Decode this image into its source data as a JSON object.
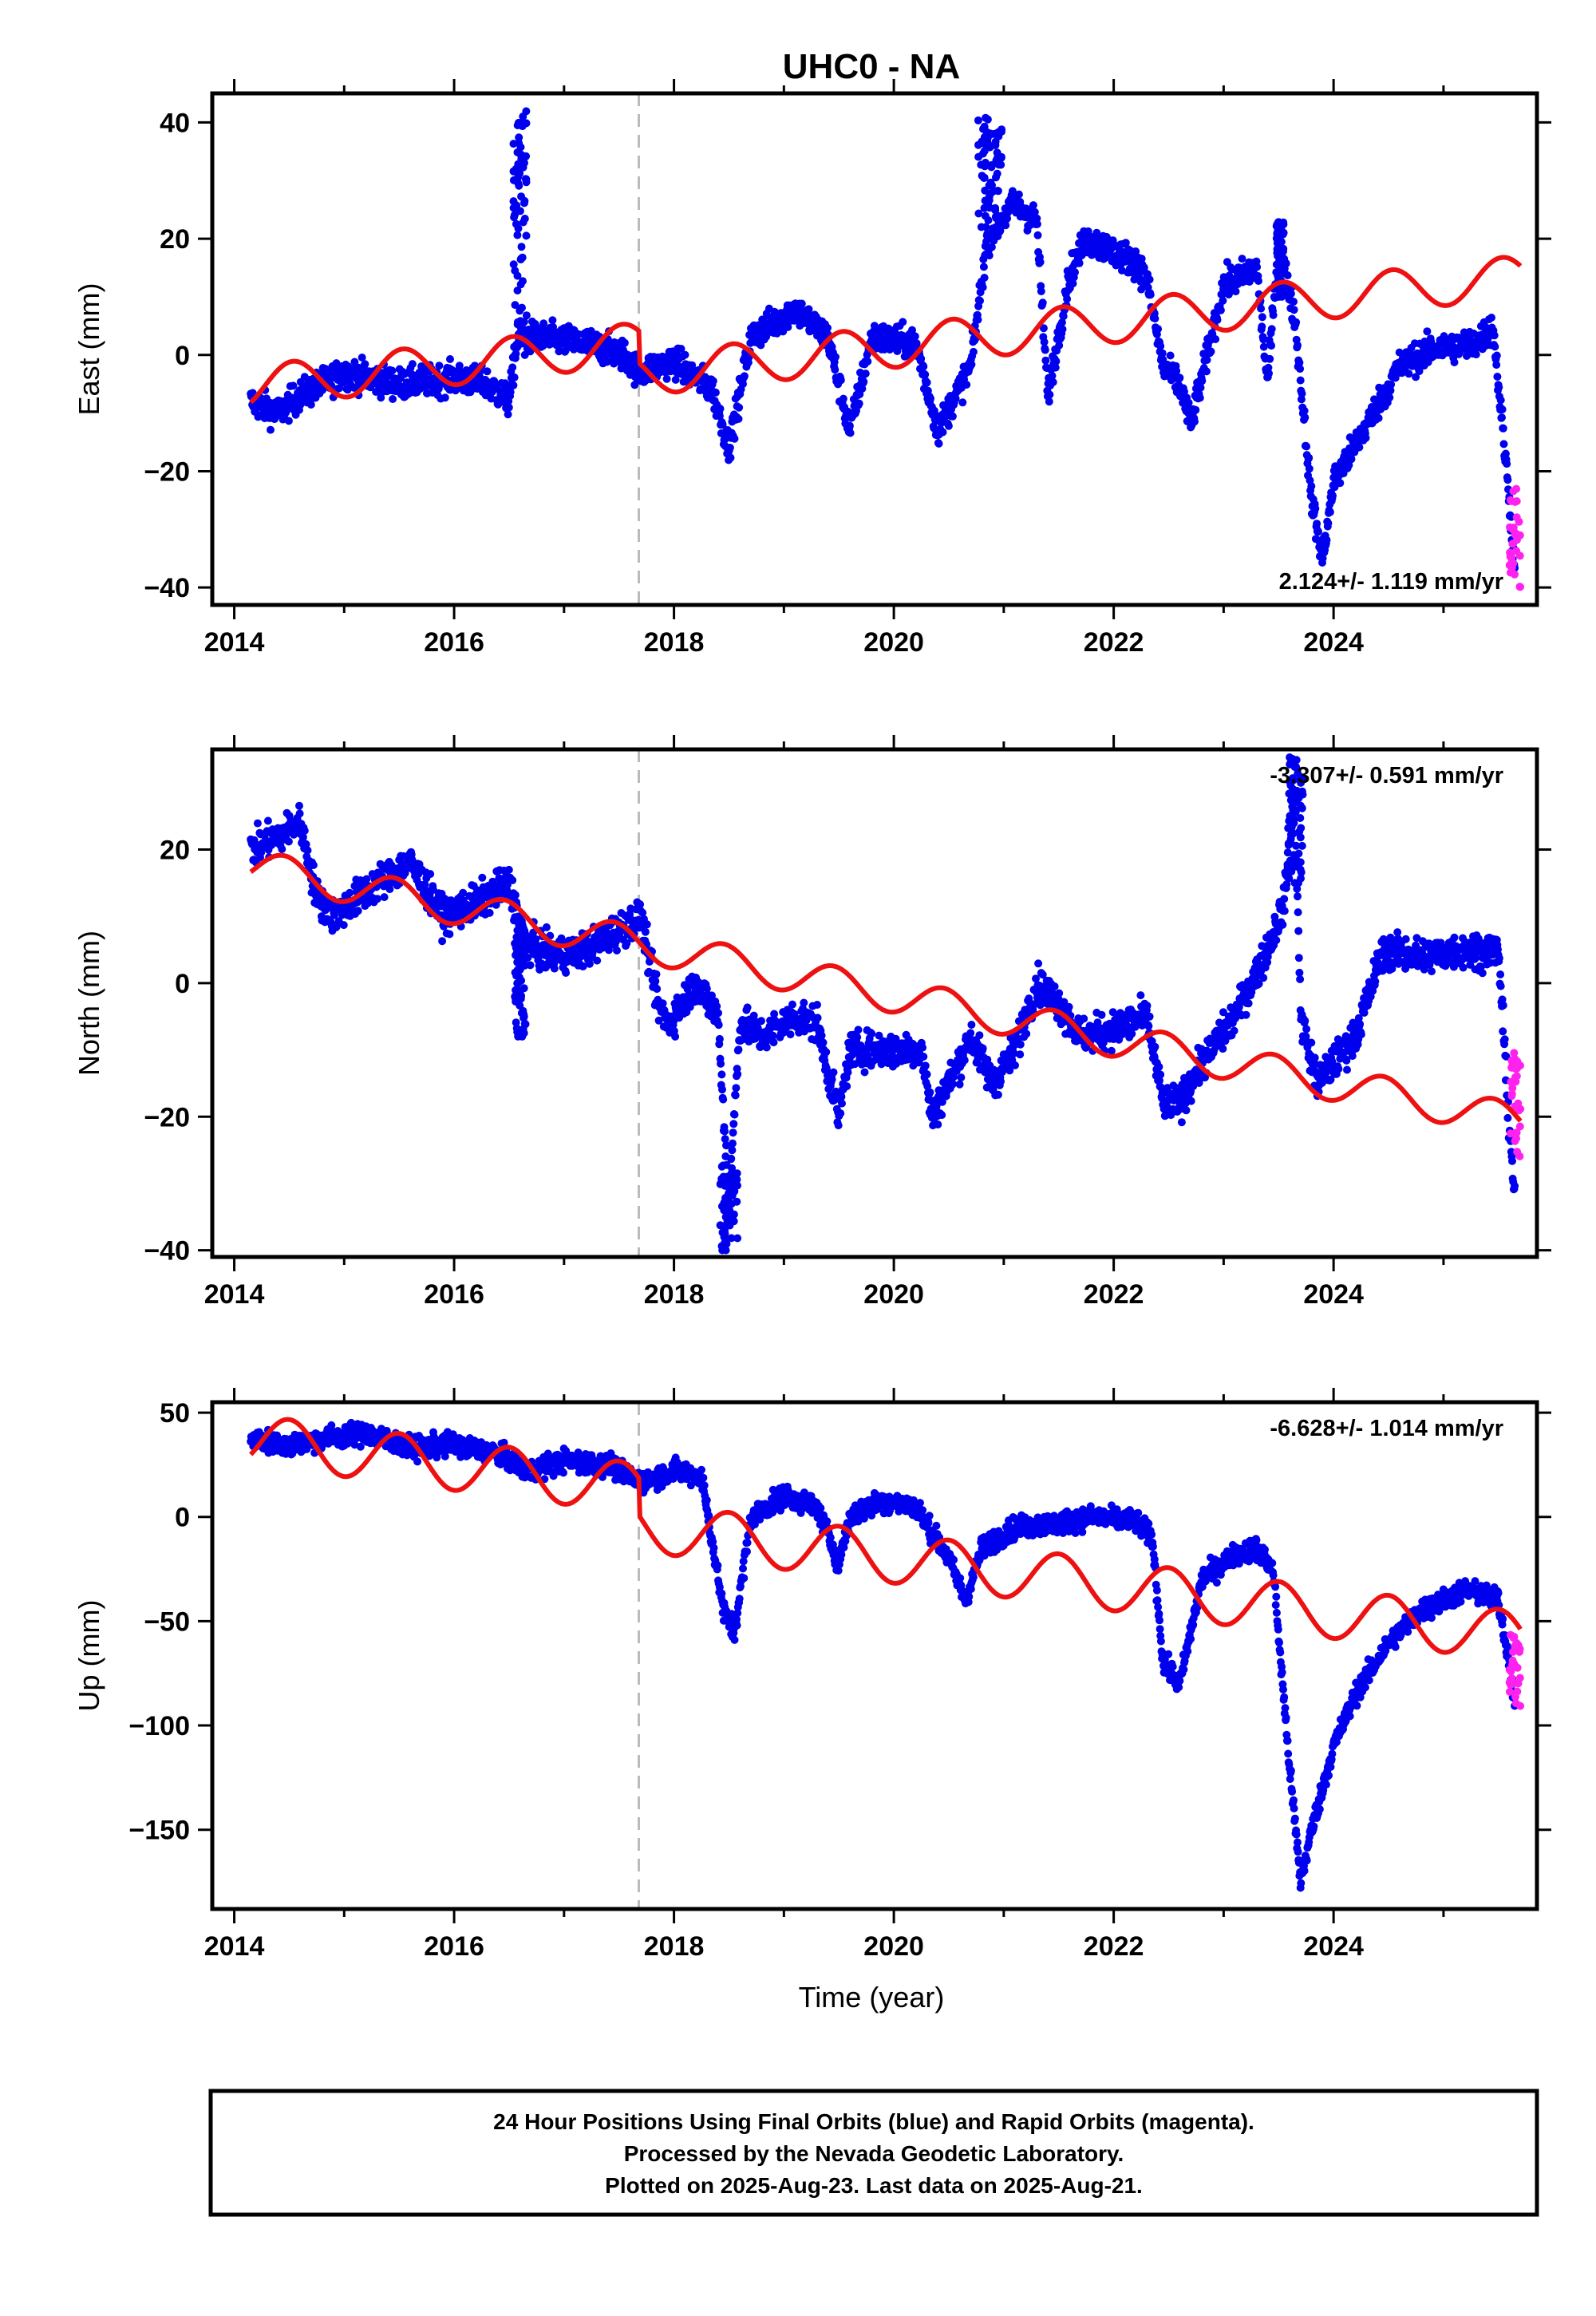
{
  "title": "UHC0 - NA",
  "xlabel": "Time (year)",
  "colors": {
    "final": "#0000ee",
    "rapid": "#ff22ee",
    "model": "#ee1111",
    "event": "#bbbbbb"
  },
  "footer": {
    "line1": "24 Hour Positions Using Final Orbits (blue) and Rapid Orbits (magenta).",
    "line2": "Processed by the Nevada Geodetic Laboratory.",
    "line3": "Plotted on 2025-Aug-23. Last data on 2025-Aug-21."
  },
  "chart_data": [
    {
      "type": "scatter",
      "ylabel": "East (mm)",
      "rate_label": "2.124+/- 1.119 mm/yr",
      "rate_position": "bottom-right",
      "xlim": [
        2013.8,
        2025.85
      ],
      "ylim": [
        -43,
        45
      ],
      "x_ticks": [
        2014,
        2016,
        2018,
        2020,
        2022,
        2024
      ],
      "x_tick_labels": [
        "2014",
        "2016",
        "2018",
        "2020",
        "2022",
        "2024"
      ],
      "y_ticks": [
        40,
        20,
        0,
        -20,
        -40
      ],
      "y_tick_labels": [
        "40",
        "20",
        "0",
        "−20",
        "−40"
      ],
      "event_lines": [
        2017.68
      ],
      "final_orbits": {
        "knots": [
          [
            2014.15,
            -8
          ],
          [
            2014.4,
            -10
          ],
          [
            2014.6,
            -7
          ],
          [
            2015.0,
            -3
          ],
          [
            2015.5,
            -5
          ],
          [
            2016.0,
            -4
          ],
          [
            2016.3,
            -5
          ],
          [
            2016.5,
            -8
          ],
          [
            2016.58,
            3
          ],
          [
            2016.8,
            3
          ],
          [
            2017.2,
            2
          ],
          [
            2017.55,
            0
          ],
          [
            2017.68,
            -3
          ],
          [
            2018.0,
            -1
          ],
          [
            2018.35,
            -6
          ],
          [
            2018.5,
            -16
          ],
          [
            2018.7,
            3
          ],
          [
            2019.1,
            8
          ],
          [
            2019.4,
            3
          ],
          [
            2019.6,
            -13
          ],
          [
            2019.8,
            3
          ],
          [
            2020.2,
            2
          ],
          [
            2020.4,
            -13
          ],
          [
            2020.7,
            -2
          ],
          [
            2020.85,
            20
          ],
          [
            2021.1,
            26
          ],
          [
            2021.3,
            23
          ],
          [
            2021.4,
            -7
          ],
          [
            2021.6,
            14
          ],
          [
            2021.75,
            20
          ],
          [
            2022.2,
            16
          ],
          [
            2022.3,
            13
          ],
          [
            2022.45,
            -2
          ],
          [
            2022.6,
            -5
          ],
          [
            2022.7,
            -12
          ],
          [
            2022.85,
            0
          ],
          [
            2023.0,
            12
          ],
          [
            2023.3,
            15
          ],
          [
            2023.4,
            -5
          ],
          [
            2023.5,
            20
          ],
          [
            2023.65,
            6
          ],
          [
            2023.8,
            -25
          ],
          [
            2023.9,
            -35
          ],
          [
            2024.0,
            -22
          ],
          [
            2024.3,
            -12
          ],
          [
            2024.6,
            -2
          ],
          [
            2024.9,
            1
          ],
          [
            2025.3,
            2
          ],
          [
            2025.45,
            5
          ],
          [
            2025.6,
            -25
          ],
          [
            2025.65,
            -38
          ]
        ],
        "spread": 2.5
      },
      "rapid_orbits": {
        "x": [
          2025.6,
          2025.7
        ],
        "y": [
          -40,
          -22
        ]
      },
      "spikes": [
        {
          "x": [
            2016.54,
            2016.66
          ],
          "y": [
            0,
            43
          ]
        },
        {
          "x": [
            2020.76,
            2020.98
          ],
          "y": [
            22,
            42
          ]
        },
        {
          "x": [
            2023.48,
            2023.55
          ],
          "y": [
            10,
            24
          ]
        }
      ],
      "model": {
        "rate": 2.124,
        "epoch": 2014.15,
        "offset": -5.5,
        "annual_amplitude": 3.6,
        "annual_phase": 2.4,
        "steps": [
          [
            2017.68,
            -5.5
          ]
        ]
      }
    },
    {
      "type": "scatter",
      "ylabel": "North (mm)",
      "rate_label": "-3.307+/- 0.591 mm/yr",
      "rate_position": "top-right",
      "xlim": [
        2013.8,
        2025.85
      ],
      "ylim": [
        -41,
        35
      ],
      "x_ticks": [
        2014,
        2016,
        2018,
        2020,
        2022,
        2024
      ],
      "x_tick_labels": [
        "2014",
        "2016",
        "2018",
        "2020",
        "2022",
        "2024"
      ],
      "y_ticks": [
        20,
        0,
        -20,
        -40
      ],
      "y_tick_labels": [
        "20",
        "0",
        "−20",
        "−40"
      ],
      "event_lines": [
        2017.68
      ],
      "final_orbits": {
        "knots": [
          [
            2014.15,
            20
          ],
          [
            2014.4,
            22
          ],
          [
            2014.6,
            24
          ],
          [
            2014.75,
            13
          ],
          [
            2014.9,
            10
          ],
          [
            2015.3,
            15
          ],
          [
            2015.6,
            18
          ],
          [
            2015.9,
            10
          ],
          [
            2016.2,
            12
          ],
          [
            2016.5,
            15
          ],
          [
            2016.65,
            6
          ],
          [
            2016.9,
            4
          ],
          [
            2017.2,
            5
          ],
          [
            2017.5,
            8
          ],
          [
            2017.7,
            10
          ],
          [
            2017.85,
            -3
          ],
          [
            2017.95,
            -6
          ],
          [
            2018.2,
            0
          ],
          [
            2018.4,
            -5
          ],
          [
            2018.5,
            -33
          ],
          [
            2018.6,
            -6
          ],
          [
            2018.8,
            -8
          ],
          [
            2019.1,
            -5
          ],
          [
            2019.3,
            -6
          ],
          [
            2019.5,
            -20
          ],
          [
            2019.6,
            -10
          ],
          [
            2020.0,
            -10
          ],
          [
            2020.25,
            -10
          ],
          [
            2020.35,
            -20
          ],
          [
            2020.5,
            -15
          ],
          [
            2020.7,
            -8
          ],
          [
            2020.9,
            -15
          ],
          [
            2021.1,
            -10
          ],
          [
            2021.3,
            0
          ],
          [
            2021.5,
            -3
          ],
          [
            2021.7,
            -8
          ],
          [
            2022.0,
            -7
          ],
          [
            2022.3,
            -5
          ],
          [
            2022.45,
            -18
          ],
          [
            2022.6,
            -18
          ],
          [
            2022.8,
            -12
          ],
          [
            2023.1,
            -5
          ],
          [
            2023.4,
            5
          ],
          [
            2023.55,
            12
          ],
          [
            2023.65,
            28
          ],
          [
            2023.7,
            -5
          ],
          [
            2023.85,
            -15
          ],
          [
            2024.0,
            -12
          ],
          [
            2024.2,
            -8
          ],
          [
            2024.45,
            5
          ],
          [
            2024.8,
            4
          ],
          [
            2025.2,
            5
          ],
          [
            2025.5,
            5
          ],
          [
            2025.6,
            -22
          ],
          [
            2025.65,
            -32
          ]
        ],
        "spread": 2.5
      },
      "rapid_orbits": {
        "x": [
          2025.6,
          2025.7
        ],
        "y": [
          -26,
          -10
        ]
      },
      "spikes": [
        {
          "x": [
            2016.55,
            2016.65
          ],
          "y": [
            -8,
            8
          ]
        },
        {
          "x": [
            2018.42,
            2018.58
          ],
          "y": [
            -40,
            -26
          ]
        },
        {
          "x": [
            2023.58,
            2023.72
          ],
          "y": [
            15,
            34
          ]
        }
      ],
      "model": {
        "rate": -3.307,
        "epoch": 2014.15,
        "offset": 17.5,
        "annual_amplitude": 2.6,
        "annual_phase": 1.9,
        "steps": []
      }
    },
    {
      "type": "scatter",
      "ylabel": "Up (mm)",
      "rate_label": "-6.628+/- 1.014 mm/yr",
      "rate_position": "top-right",
      "xlim": [
        2013.8,
        2025.85
      ],
      "ylim": [
        -188,
        55
      ],
      "x_ticks": [
        2014,
        2016,
        2018,
        2020,
        2022,
        2024
      ],
      "x_tick_labels": [
        "2014",
        "2016",
        "2018",
        "2020",
        "2022",
        "2024"
      ],
      "y_ticks": [
        50,
        0,
        -50,
        -100,
        -150
      ],
      "y_tick_labels": [
        "50",
        "0",
        "−50",
        "−100",
        "−150"
      ],
      "event_lines": [
        2017.68
      ],
      "final_orbits": {
        "knots": [
          [
            2014.15,
            38
          ],
          [
            2014.5,
            34
          ],
          [
            2014.8,
            38
          ],
          [
            2015.2,
            40
          ],
          [
            2015.6,
            33
          ],
          [
            2016.0,
            35
          ],
          [
            2016.4,
            30
          ],
          [
            2016.7,
            22
          ],
          [
            2017.0,
            27
          ],
          [
            2017.4,
            25
          ],
          [
            2017.7,
            17
          ],
          [
            2018.0,
            22
          ],
          [
            2018.25,
            20
          ],
          [
            2018.45,
            -45
          ],
          [
            2018.55,
            -55
          ],
          [
            2018.7,
            0
          ],
          [
            2019.0,
            10
          ],
          [
            2019.3,
            5
          ],
          [
            2019.5,
            -22
          ],
          [
            2019.6,
            0
          ],
          [
            2019.9,
            8
          ],
          [
            2020.2,
            5
          ],
          [
            2020.5,
            -20
          ],
          [
            2020.65,
            -40
          ],
          [
            2020.8,
            -15
          ],
          [
            2021.1,
            -5
          ],
          [
            2021.5,
            -3
          ],
          [
            2021.8,
            0
          ],
          [
            2022.2,
            -2
          ],
          [
            2022.35,
            -10
          ],
          [
            2022.45,
            -70
          ],
          [
            2022.6,
            -80
          ],
          [
            2022.8,
            -30
          ],
          [
            2023.1,
            -18
          ],
          [
            2023.3,
            -15
          ],
          [
            2023.45,
            -25
          ],
          [
            2023.6,
            -120
          ],
          [
            2023.7,
            -175
          ],
          [
            2023.8,
            -150
          ],
          [
            2024.0,
            -110
          ],
          [
            2024.2,
            -85
          ],
          [
            2024.5,
            -60
          ],
          [
            2024.8,
            -45
          ],
          [
            2025.2,
            -35
          ],
          [
            2025.5,
            -40
          ],
          [
            2025.6,
            -70
          ],
          [
            2025.65,
            -90
          ]
        ],
        "spread": 5
      },
      "rapid_orbits": {
        "x": [
          2025.6,
          2025.7
        ],
        "y": [
          -92,
          -55
        ]
      },
      "spikes": [],
      "model": {
        "rate": -6.628,
        "epoch": 2014.15,
        "offset": 37,
        "annual_amplitude": 12,
        "annual_phase": 2.2,
        "steps": [
          [
            2017.68,
            -18
          ]
        ]
      }
    }
  ]
}
